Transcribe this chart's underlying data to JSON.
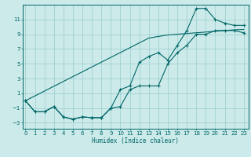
{
  "xlabel": "Humidex (Indice chaleur)",
  "bg_color": "#cceaea",
  "grid_color": "#99cccc",
  "line_color": "#006666",
  "x": [
    0,
    1,
    2,
    3,
    4,
    5,
    6,
    7,
    8,
    9,
    10,
    11,
    12,
    13,
    14,
    15,
    16,
    17,
    18,
    19,
    20,
    21,
    22,
    23
  ],
  "y_straight": [
    0.0,
    0.65,
    1.3,
    1.96,
    2.61,
    3.26,
    3.91,
    4.57,
    5.22,
    5.87,
    6.52,
    7.17,
    7.83,
    8.48,
    8.7,
    8.9,
    9.0,
    9.1,
    9.2,
    9.3,
    9.4,
    9.5,
    9.6,
    9.65
  ],
  "y_upper": [
    0.0,
    -1.5,
    -1.5,
    -0.8,
    -2.2,
    -2.5,
    -2.2,
    -2.3,
    -2.3,
    -1.0,
    1.5,
    2.0,
    5.2,
    6.0,
    6.5,
    5.5,
    7.5,
    9.5,
    12.5,
    12.5,
    11.0,
    10.5,
    10.2,
    10.2
  ],
  "y_lower": [
    0.0,
    -1.5,
    -1.5,
    -0.8,
    -2.2,
    -2.5,
    -2.2,
    -2.3,
    -2.3,
    -1.0,
    -0.8,
    1.5,
    2.0,
    2.0,
    2.0,
    5.0,
    6.5,
    7.5,
    9.0,
    9.0,
    9.5,
    9.5,
    9.5,
    9.2
  ],
  "xlim": [
    -0.3,
    23.5
  ],
  "ylim": [
    -3.8,
    13.0
  ],
  "yticks": [
    -3,
    -1,
    1,
    3,
    5,
    7,
    9,
    11
  ],
  "xticks": [
    0,
    1,
    2,
    3,
    4,
    5,
    6,
    7,
    8,
    9,
    10,
    11,
    12,
    13,
    14,
    15,
    16,
    17,
    18,
    19,
    20,
    21,
    22,
    23
  ],
  "tick_fontsize": 5.0,
  "xlabel_fontsize": 5.5
}
